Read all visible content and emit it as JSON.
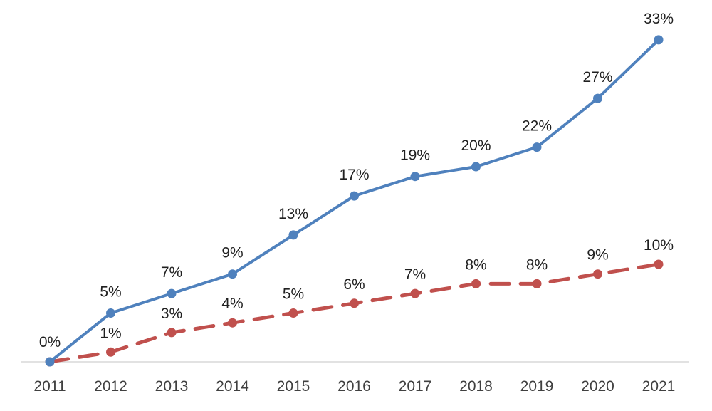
{
  "chart_data": {
    "type": "line",
    "title": "",
    "xlabel": "",
    "ylabel": "",
    "ylim": [
      0,
      35
    ],
    "grid": false,
    "legend": "none",
    "categories": [
      "2011",
      "2012",
      "2013",
      "2014",
      "2015",
      "2016",
      "2017",
      "2018",
      "2019",
      "2020",
      "2021"
    ],
    "series": [
      {
        "values": [
          0,
          5,
          7,
          9,
          13,
          17,
          19,
          20,
          22,
          27,
          33
        ],
        "labels": [
          "0%",
          "5%",
          "7%",
          "9%",
          "13%",
          "17%",
          "19%",
          "20%",
          "22%",
          "27%",
          "33%"
        ],
        "color": "#4F81BD",
        "line_style": "solid",
        "marker": "circle"
      },
      {
        "values": [
          0,
          1,
          3,
          4,
          5,
          6,
          7,
          8,
          8,
          9,
          10
        ],
        "labels": [
          "",
          "1%",
          "3%",
          "4%",
          "5%",
          "6%",
          "7%",
          "8%",
          "8%",
          "9%",
          "10%"
        ],
        "color": "#C0504D",
        "line_style": "dashed",
        "marker": "circle"
      }
    ],
    "axis_color": "#D9D9D9"
  }
}
